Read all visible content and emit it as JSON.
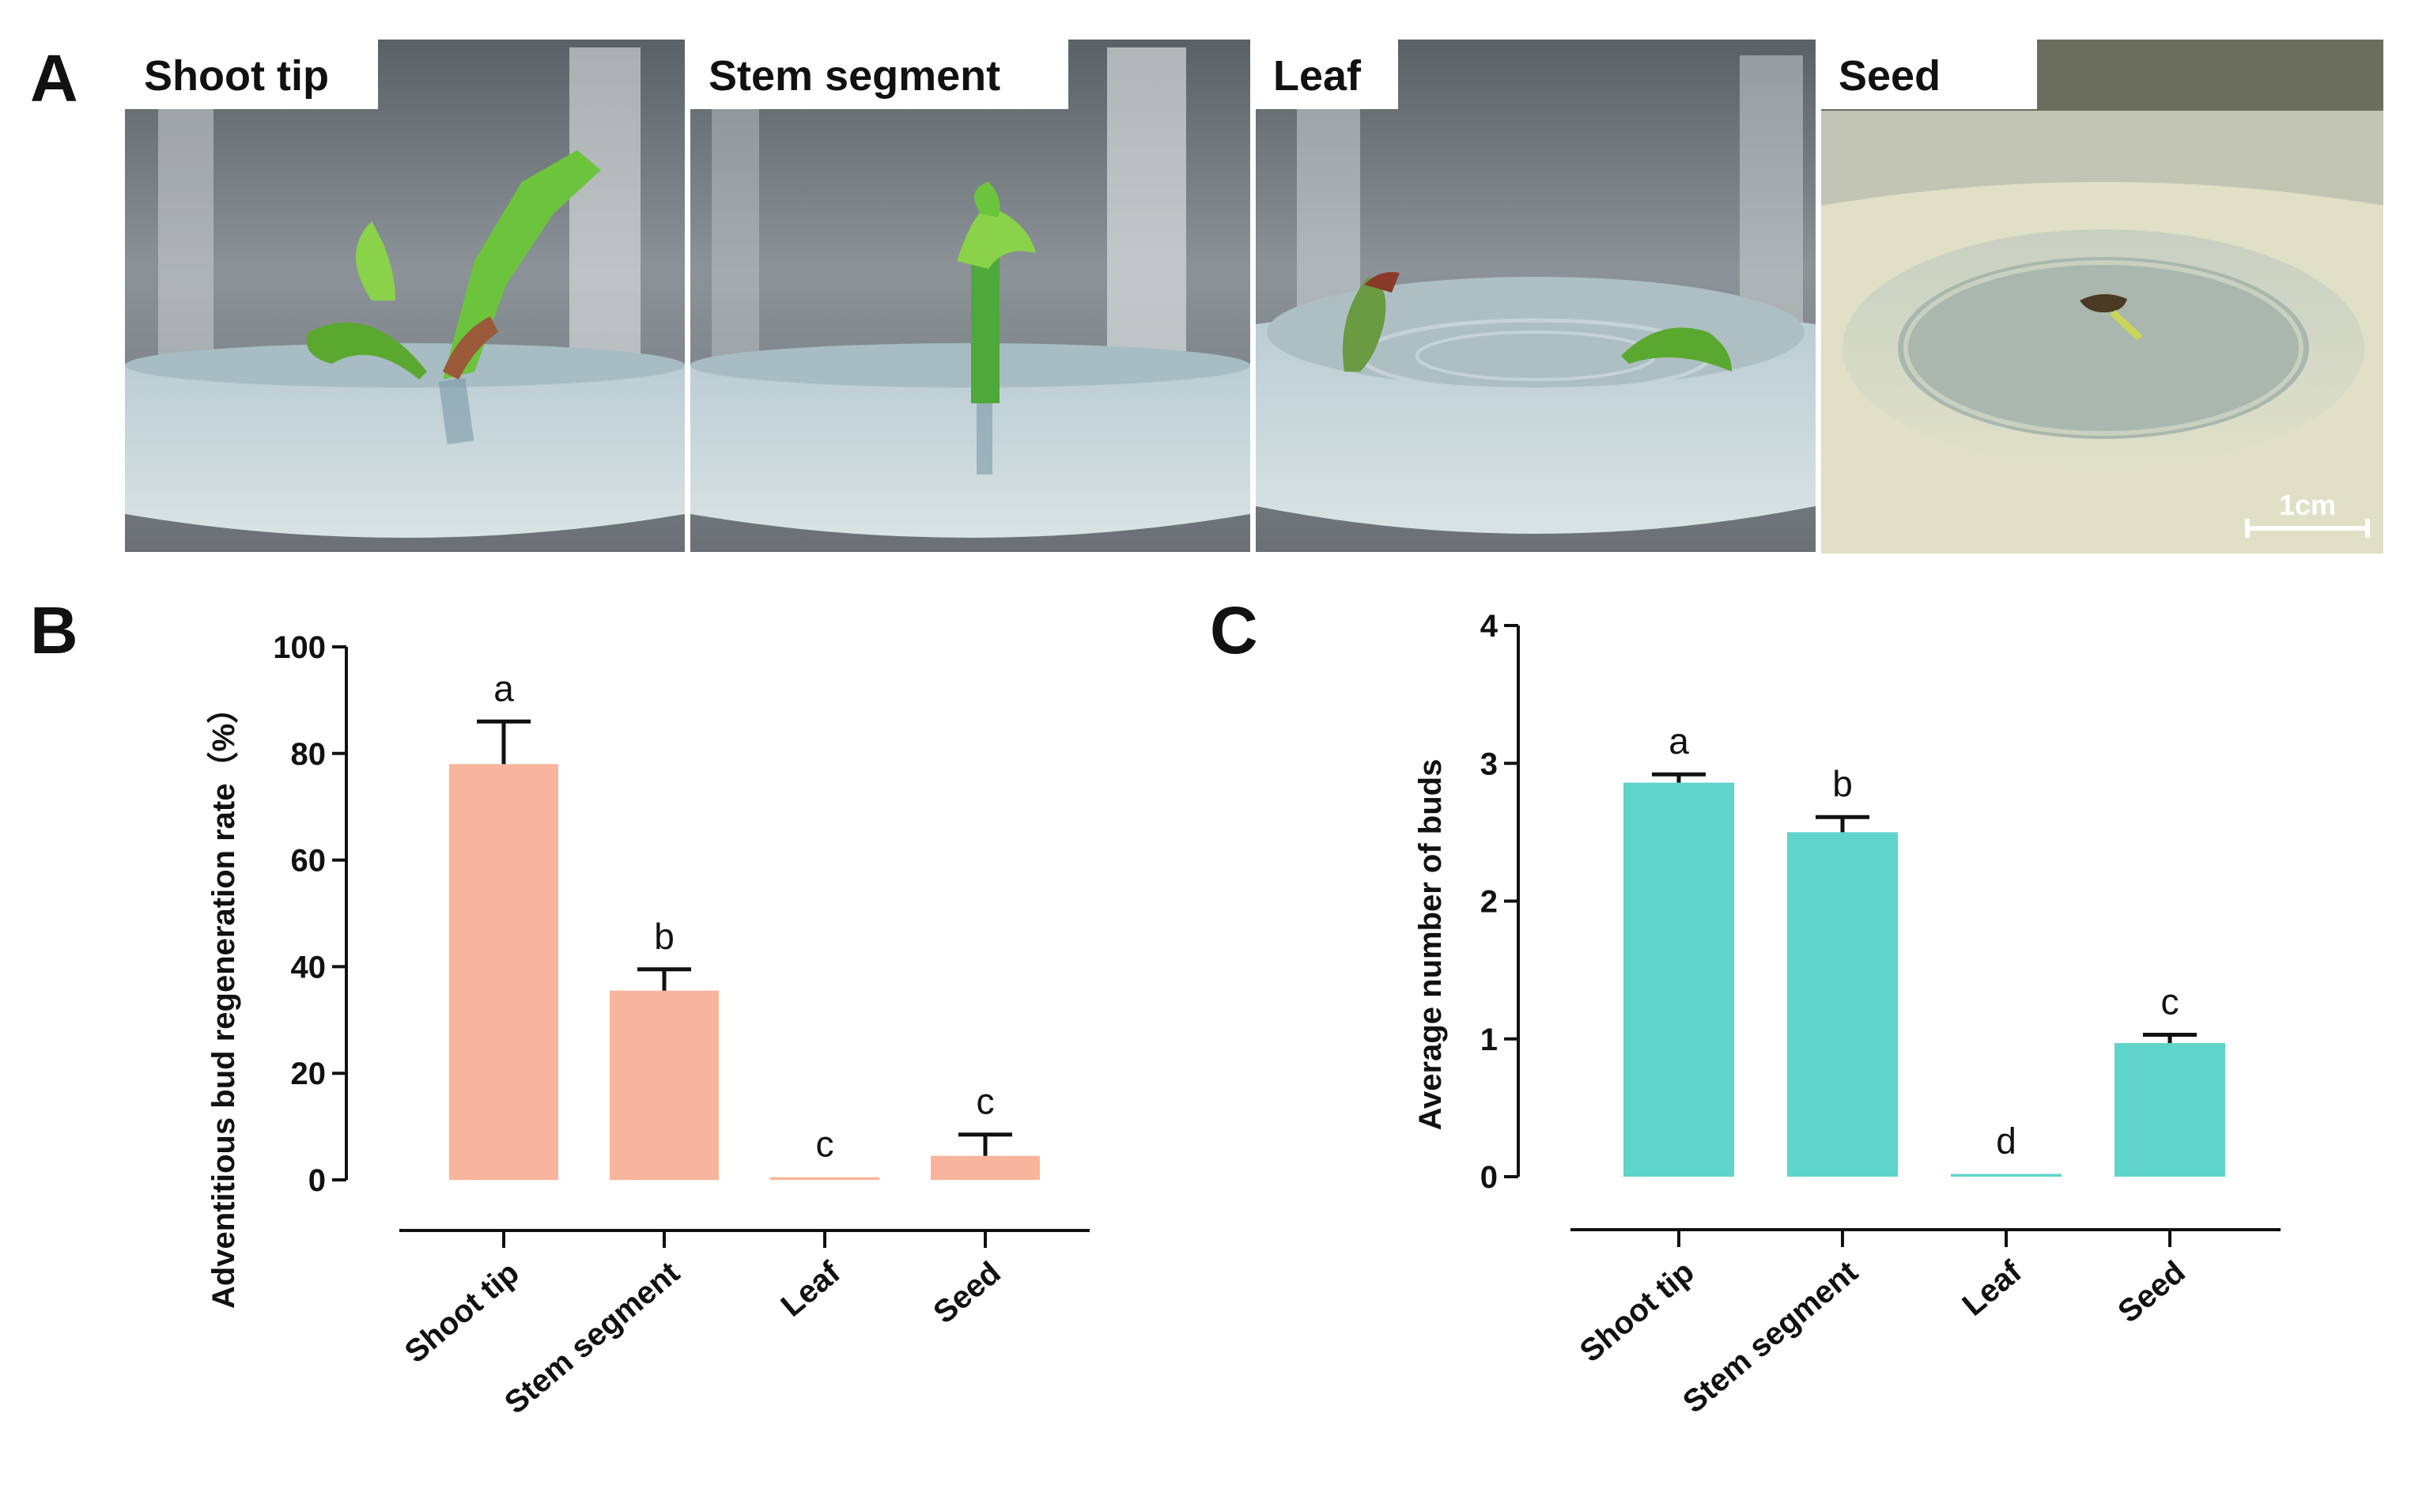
{
  "panel_a": {
    "letter": "A",
    "photos": [
      {
        "label": "Shoot tip"
      },
      {
        "label": "Stem segment"
      },
      {
        "label": "Leaf"
      },
      {
        "label": "Seed"
      }
    ],
    "scale_bar": "1cm"
  },
  "chart_data": [
    {
      "panel": "B",
      "type": "bar",
      "title": "",
      "xlabel": "",
      "ylabel": "Adventitious bud regeneration rate（%）",
      "categories": [
        "Shoot tip",
        "Stem segment",
        "Leaf",
        "Seed"
      ],
      "values": [
        78,
        35.5,
        0.5,
        4.5
      ],
      "errors": [
        8,
        4,
        0,
        4
      ],
      "letters": [
        "a",
        "b",
        "c",
        "c"
      ],
      "ylim": [
        0,
        100
      ],
      "yticks": [
        "0",
        "20",
        "40",
        "60",
        "80",
        "100"
      ],
      "color": "#F8B49C"
    },
    {
      "panel": "C",
      "type": "bar",
      "title": "",
      "xlabel": "",
      "ylabel": "Average number of buds",
      "categories": [
        "Shoot tip",
        "Stem segment",
        "Leaf",
        "Seed"
      ],
      "values": [
        2.86,
        2.5,
        0.02,
        0.97
      ],
      "errors": [
        0.06,
        0.11,
        0,
        0.06
      ],
      "letters": [
        "a",
        "b",
        "d",
        "c"
      ],
      "ylim": [
        0,
        4
      ],
      "yticks": [
        "0",
        "1",
        "2",
        "3",
        "4"
      ],
      "color": "#5FD4CA"
    }
  ]
}
